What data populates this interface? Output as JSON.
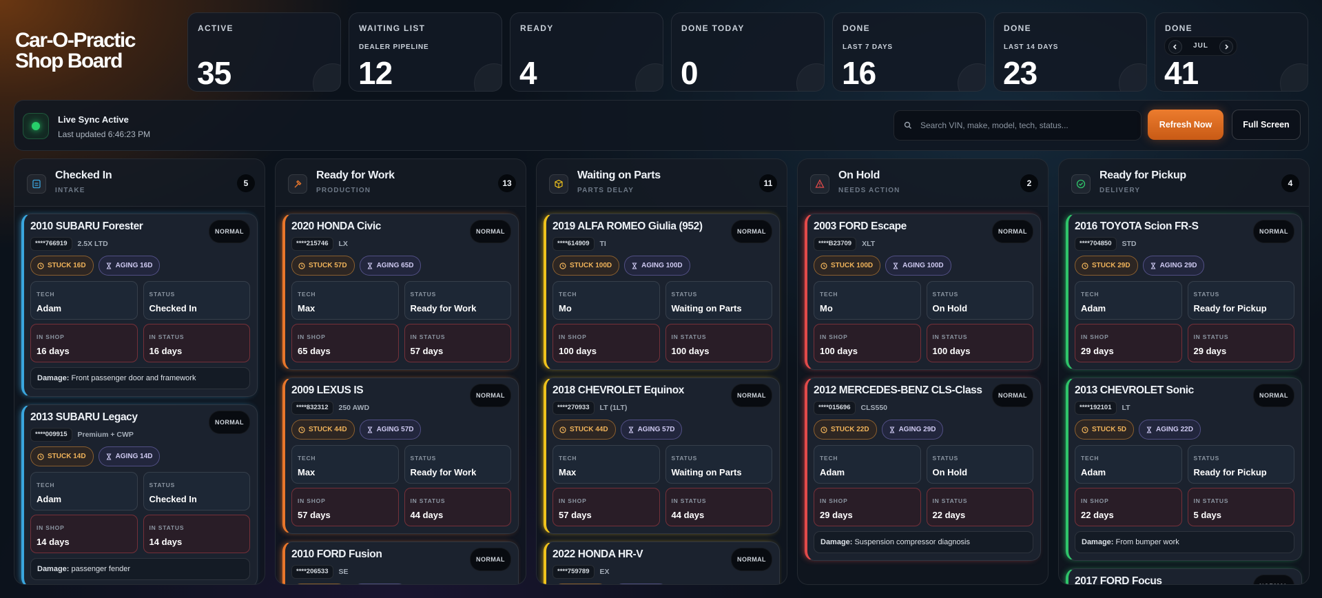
{
  "header": {
    "title": [
      "Car-O-Practic",
      "Shop Board"
    ]
  },
  "stats": [
    {
      "label": "ACTIVE",
      "value": 35
    },
    {
      "label": "WAITING LIST",
      "sublabel": "DEALER PIPELINE",
      "value": 12
    },
    {
      "label": "READY",
      "value": 4
    },
    {
      "label": "DONE TODAY",
      "value": 0
    },
    {
      "label": "DONE",
      "sublabel": "LAST 7 DAYS",
      "value": 16
    },
    {
      "label": "DONE",
      "sublabel": "LAST 14 DAYS",
      "value": 23
    },
    {
      "label": "DONE",
      "month": "JUL",
      "value": 41
    }
  ],
  "sync": {
    "status": "Live Sync Active",
    "updated": "Last updated 6:46:23 PM"
  },
  "search_placeholder": "Search VIN, make, model, tech, status...",
  "buttons": {
    "refresh": "Refresh Now",
    "fullscreen": "Full Screen"
  },
  "labels": {
    "tech": "TECH",
    "status": "STATUS",
    "in_shop": "IN SHOP",
    "in_status": "IN STATUS",
    "damage": "Damage:"
  },
  "columns": [
    {
      "title": "Checked In",
      "subtitle": "INTAKE",
      "count": 5,
      "color": "#3aa6de",
      "cards": [
        {
          "title": "2010 SUBARU Forester",
          "priority": "NORMAL",
          "vin": "****766919",
          "trim": "2.5X LTD",
          "stuck": "STUCK 16D",
          "aging": "AGING 16D",
          "tech": "Adam",
          "status": "Checked In",
          "in_shop": "16 days",
          "in_status": "16 days",
          "damage": "Front passenger door and framework"
        },
        {
          "title": "2013 SUBARU Legacy",
          "priority": "NORMAL",
          "vin": "****009915",
          "trim": "Premium + CWP",
          "stuck": "STUCK 14D",
          "aging": "AGING 14D",
          "tech": "Adam",
          "status": "Checked In",
          "in_shop": "14 days",
          "in_status": "14 days",
          "damage": "passenger fender"
        }
      ]
    },
    {
      "title": "Ready for Work",
      "subtitle": "PRODUCTION",
      "count": 13,
      "color": "#e8762b",
      "cards": [
        {
          "title": "2020 HONDA Civic",
          "priority": "NORMAL",
          "vin": "****215746",
          "trim": "LX",
          "stuck": "STUCK 57D",
          "aging": "AGING 65D",
          "tech": "Max",
          "status": "Ready for Work",
          "in_shop": "65 days",
          "in_status": "57 days"
        },
        {
          "title": "2009 LEXUS IS",
          "priority": "NORMAL",
          "vin": "****832312",
          "trim": "250 AWD",
          "stuck": "STUCK 44D",
          "aging": "AGING 57D",
          "tech": "Max",
          "status": "Ready for Work",
          "in_shop": "57 days",
          "in_status": "44 days"
        },
        {
          "title": "2010 FORD Fusion",
          "priority": "NORMAL",
          "vin": "****206533",
          "trim": "SE"
        }
      ]
    },
    {
      "title": "Waiting on Parts",
      "subtitle": "PARTS DELAY",
      "count": 11,
      "color": "#efc21c",
      "cards": [
        {
          "title": "2019 ALFA ROMEO Giulia (952)",
          "priority": "NORMAL",
          "vin": "****614909",
          "trim": "TI",
          "stuck": "STUCK 100D",
          "aging": "AGING 100D",
          "tech": "Mo",
          "status": "Waiting on Parts",
          "in_shop": "100 days",
          "in_status": "100 days"
        },
        {
          "title": "2018 CHEVROLET Equinox",
          "priority": "NORMAL",
          "vin": "****270933",
          "trim": "LT (1LT)",
          "stuck": "STUCK 44D",
          "aging": "AGING 57D",
          "tech": "Max",
          "status": "Waiting on Parts",
          "in_shop": "57 days",
          "in_status": "44 days"
        },
        {
          "title": "2022 HONDA HR-V",
          "priority": "NORMAL",
          "vin": "****759789",
          "trim": "EX"
        }
      ]
    },
    {
      "title": "On Hold",
      "subtitle": "NEEDS ACTION",
      "count": 2,
      "color": "#e24a4a",
      "cards": [
        {
          "title": "2003 FORD Escape",
          "priority": "NORMAL",
          "vin": "****B23709",
          "trim": "XLT",
          "stuck": "STUCK 100D",
          "aging": "AGING 100D",
          "tech": "Mo",
          "status": "On Hold",
          "in_shop": "100 days",
          "in_status": "100 days"
        },
        {
          "title": "2012 MERCEDES-BENZ CLS-Class",
          "priority": "NORMAL",
          "vin": "****015696",
          "trim": "CLS550",
          "stuck": "STUCK 22D",
          "aging": "AGING 29D",
          "tech": "Adam",
          "status": "On Hold",
          "in_shop": "29 days",
          "in_status": "22 days",
          "damage": "Suspension compressor diagnosis"
        }
      ]
    },
    {
      "title": "Ready for Pickup",
      "subtitle": "DELIVERY",
      "count": 4,
      "color": "#2fc46a",
      "cards": [
        {
          "title": "2016 TOYOTA Scion FR-S",
          "priority": "NORMAL",
          "vin": "****704850",
          "trim": "STD",
          "stuck": "STUCK 29D",
          "aging": "AGING 29D",
          "tech": "Adam",
          "status": "Ready for Pickup",
          "in_shop": "29 days",
          "in_status": "29 days"
        },
        {
          "title": "2013 CHEVROLET Sonic",
          "priority": "NORMAL",
          "vin": "****192101",
          "trim": "LT",
          "stuck": "STUCK 5D",
          "aging": "AGING 22D",
          "tech": "Adam",
          "status": "Ready for Pickup",
          "in_shop": "22 days",
          "in_status": "5 days",
          "damage": "From bumper work"
        },
        {
          "title": "2017 FORD Focus",
          "priority": "NORMAL"
        }
      ]
    }
  ]
}
